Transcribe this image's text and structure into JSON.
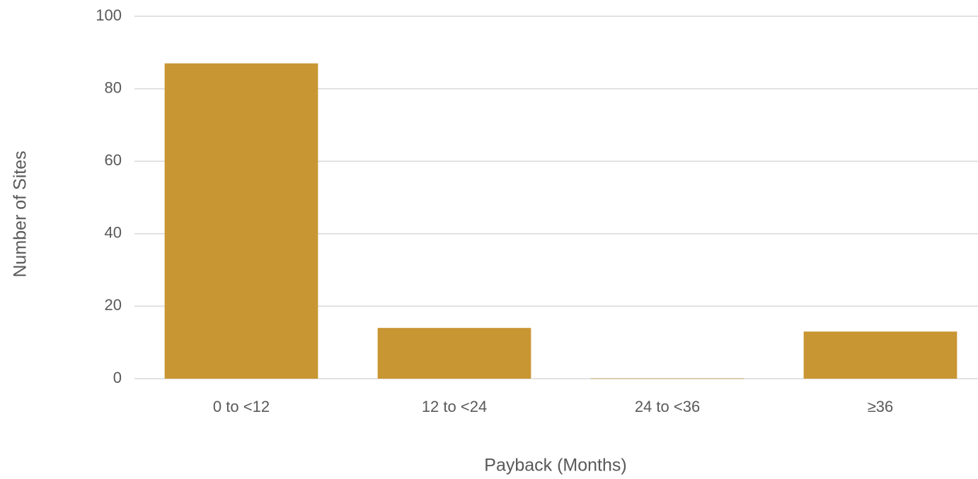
{
  "chart_data": {
    "type": "bar",
    "categories": [
      "0 to <12",
      "12 to <24",
      "24 to <36",
      "≥36"
    ],
    "values": [
      87,
      14,
      0,
      13
    ],
    "color": "#c89632",
    "x_label": "Payback (Months)",
    "y_label": "Number of Sites",
    "ylim": [
      0,
      100
    ],
    "yticks": [
      0,
      20,
      40,
      60,
      80,
      100
    ],
    "grid": true
  }
}
